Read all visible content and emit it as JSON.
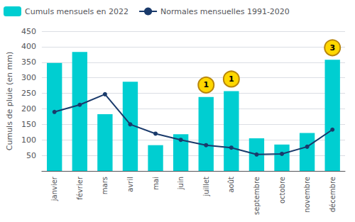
{
  "chart_data": {
    "type": "bar",
    "categories": [
      "janvier",
      "février",
      "mars",
      "avril",
      "mai",
      "juin",
      "juillet",
      "août",
      "septembre",
      "octobre",
      "novembre",
      "décembre"
    ],
    "series": [
      {
        "name": "Cumuls mensuels en 2022",
        "type": "bar",
        "color": "#00CED1",
        "values": [
          348,
          383,
          183,
          287,
          83,
          118,
          238,
          257,
          105,
          85,
          122,
          358
        ]
      },
      {
        "name": "Normales mensuelles 1991-2020",
        "type": "line",
        "color": "#1a3a6b",
        "marker": "circle",
        "values": [
          190,
          213,
          247,
          150,
          120,
          100,
          83,
          75,
          53,
          55,
          78,
          133
        ]
      }
    ],
    "ylabel": "Cumuls de pluie (en mm)",
    "ylim": [
      0,
      450
    ],
    "yticks": [
      {
        "value": 0,
        "label": ""
      },
      50,
      100,
      150,
      200,
      250,
      300,
      350,
      400,
      450
    ],
    "grid": true,
    "legend": "upper left",
    "annotations": [
      {
        "category": "juillet",
        "text": "1"
      },
      {
        "category": "août",
        "text": "1"
      },
      {
        "category": "décembre",
        "text": "3"
      }
    ]
  }
}
